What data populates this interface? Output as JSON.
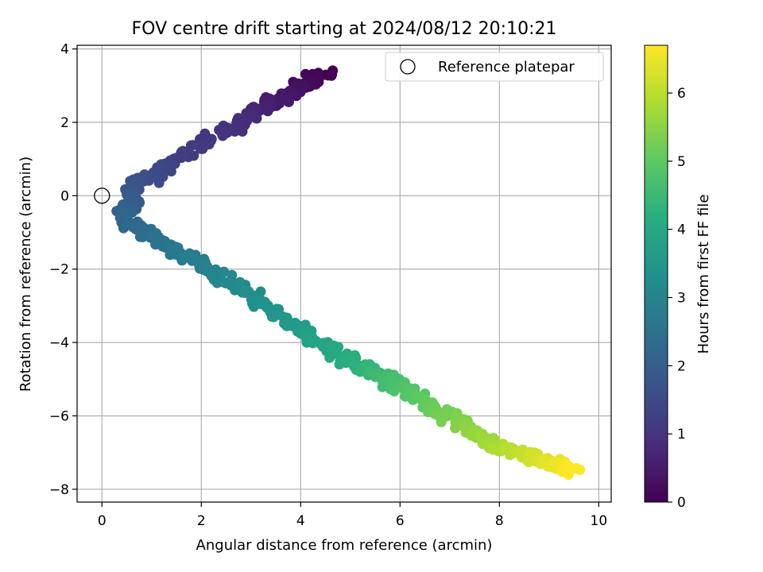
{
  "chart_data": {
    "type": "scatter",
    "title": "FOV centre drift starting at 2024/08/12 20:10:21",
    "xlabel": "Angular distance from reference (arcmin)",
    "ylabel": "Rotation from reference (arcmin)",
    "xlim": [
      -0.5,
      10.25
    ],
    "ylim": [
      -8.35,
      4.1
    ],
    "xticks": [
      0,
      2,
      4,
      6,
      8,
      10
    ],
    "yticks": [
      -8,
      -6,
      -4,
      -2,
      0,
      2,
      4
    ],
    "grid": true,
    "legend": {
      "placement": "top-right",
      "entries": [
        "Reference platepar"
      ]
    },
    "reference_point": {
      "x": 0,
      "y": 0,
      "marker": "open-circle"
    },
    "colorbar": {
      "label": "Hours from first FF file",
      "colormap": "viridis",
      "range": [
        0,
        6.7
      ],
      "ticks": [
        0,
        1,
        2,
        3,
        4,
        5,
        6
      ]
    },
    "path_anchors": [
      {
        "hours": 0.0,
        "x": 4.55,
        "y": 3.35
      },
      {
        "hours": 0.5,
        "x": 3.5,
        "y": 2.6
      },
      {
        "hours": 1.0,
        "x": 2.5,
        "y": 1.8
      },
      {
        "hours": 1.3,
        "x": 1.4,
        "y": 0.9
      },
      {
        "hours": 1.8,
        "x": 0.6,
        "y": 0.15
      },
      {
        "hours": 2.2,
        "x": 0.5,
        "y": -0.7
      },
      {
        "hours": 2.7,
        "x": 1.5,
        "y": -1.5
      },
      {
        "hours": 3.2,
        "x": 2.7,
        "y": -2.5
      },
      {
        "hours": 3.7,
        "x": 4.0,
        "y": -3.7
      },
      {
        "hours": 4.2,
        "x": 5.0,
        "y": -4.5
      },
      {
        "hours": 4.8,
        "x": 6.0,
        "y": -5.2
      },
      {
        "hours": 5.3,
        "x": 7.0,
        "y": -6.0
      },
      {
        "hours": 5.8,
        "x": 7.9,
        "y": -6.8
      },
      {
        "hours": 6.3,
        "x": 8.8,
        "y": -7.2
      },
      {
        "hours": 6.7,
        "x": 9.5,
        "y": -7.5
      }
    ]
  }
}
